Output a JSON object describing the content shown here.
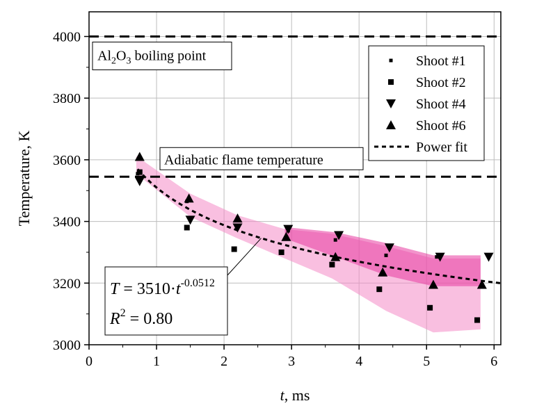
{
  "chart_data": {
    "type": "scatter",
    "xlabel_italic": "t",
    "xlabel_rest": ", ms",
    "ylabel": "Temperature, K",
    "xlim": [
      0,
      6.1
    ],
    "ylim": [
      3000,
      4080
    ],
    "x_ticks": [
      0,
      1,
      2,
      3,
      4,
      5,
      6
    ],
    "y_ticks": [
      3000,
      3200,
      3400,
      3600,
      3800,
      4000
    ],
    "grid": true,
    "legend_position": "top-right",
    "legend": [
      "Shoot #1",
      "Shoot #2",
      "Shoot #4",
      "Shoot #6",
      "Power fit"
    ],
    "series": [
      {
        "name": "Shoot #1",
        "marker": "small-square",
        "x": [
          0.72,
          1.45,
          2.2,
          2.95,
          3.65,
          4.4,
          5.15
        ],
        "y": [
          3555,
          3465,
          3380,
          3370,
          3340,
          3290,
          3285
        ]
      },
      {
        "name": "Shoot #2",
        "marker": "square",
        "x": [
          0.75,
          1.45,
          2.15,
          2.85,
          3.6,
          4.3,
          5.05,
          5.75
        ],
        "y": [
          3560,
          3380,
          3310,
          3300,
          3260,
          3180,
          3120,
          3080
        ]
      },
      {
        "name": "Shoot #4",
        "marker": "triangle-down",
        "x": [
          0.75,
          1.5,
          2.2,
          2.95,
          3.7,
          4.45,
          5.2,
          5.92
        ],
        "y": [
          3530,
          3405,
          3380,
          3375,
          3355,
          3315,
          3285,
          3285
        ]
      },
      {
        "name": "Shoot #6",
        "marker": "triangle-up",
        "x": [
          0.75,
          1.48,
          2.2,
          2.92,
          3.65,
          4.35,
          5.1,
          5.82
        ],
        "y": [
          3610,
          3475,
          3410,
          3350,
          3285,
          3235,
          3195,
          3195
        ]
      }
    ],
    "power_fit": {
      "name": "Power fit",
      "a": 3510,
      "b": -0.0512,
      "x_range": [
        0.72,
        6.1
      ]
    },
    "bands": [
      {
        "color": "#f48ac6",
        "upper": [
          [
            0.7,
            3612
          ],
          [
            1.5,
            3490
          ],
          [
            2.2,
            3420
          ],
          [
            2.9,
            3375
          ],
          [
            3.6,
            3360
          ],
          [
            4.4,
            3320
          ],
          [
            5.1,
            3280
          ],
          [
            5.8,
            3280
          ]
        ],
        "lower": [
          [
            0.7,
            3555
          ],
          [
            1.5,
            3415
          ],
          [
            2.2,
            3345
          ],
          [
            2.9,
            3280
          ],
          [
            3.6,
            3215
          ],
          [
            4.4,
            3110
          ],
          [
            5.1,
            3040
          ],
          [
            5.8,
            3050
          ]
        ]
      },
      {
        "color": "#e73aa0",
        "upper": [
          [
            2.9,
            3382
          ],
          [
            3.65,
            3365
          ],
          [
            4.4,
            3330
          ],
          [
            5.1,
            3290
          ],
          [
            5.8,
            3290
          ]
        ],
        "lower": [
          [
            2.9,
            3345
          ],
          [
            3.65,
            3285
          ],
          [
            4.4,
            3225
          ],
          [
            5.1,
            3190
          ],
          [
            5.8,
            3190
          ]
        ]
      }
    ],
    "reference_lines": [
      {
        "y": 4000,
        "label_main": "Al",
        "label_sub1": "2",
        "label_mid": "O",
        "label_sub2": "3",
        "label_rest": " boiling point"
      },
      {
        "y": 3545,
        "label": "Adiabatic flame temperature"
      }
    ],
    "equation": {
      "T_var": "T",
      "T_rest": " = 3510·",
      "t_var": "t",
      "exp": "-0.0512",
      "R_var": "R",
      "R_exp": "2",
      "R_rest": " = 0.80"
    },
    "colors": {
      "band_light": "#f48ac6",
      "band_dark": "#e73aa0",
      "grid": "#bdbdbd"
    }
  }
}
